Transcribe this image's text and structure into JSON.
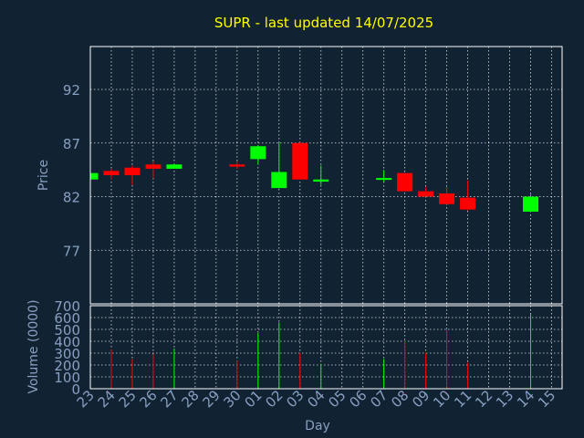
{
  "chart_data": {
    "type": "candlestick",
    "title": "SUPR - last updated 14/07/2025",
    "xlabel": "Day",
    "x_ticks": [
      "23",
      "24",
      "25",
      "26",
      "27",
      "28",
      "29",
      "30",
      "01",
      "02",
      "03",
      "04",
      "05",
      "06",
      "07",
      "08",
      "09",
      "10",
      "11",
      "12",
      "13",
      "14",
      "15"
    ],
    "price_panel": {
      "ylabel": "Price",
      "ylim": [
        72,
        96
      ],
      "y_ticks": [
        77,
        82,
        87,
        92
      ],
      "grid": true,
      "candles": [
        {
          "day": "23",
          "open": 83.6,
          "high": 84.2,
          "low": 83.6,
          "close": 84.2
        },
        {
          "day": "24",
          "open": 84.4,
          "high": 84.6,
          "low": 83.6,
          "close": 84.0
        },
        {
          "day": "25",
          "open": 84.7,
          "high": 84.9,
          "low": 83.1,
          "close": 84.0
        },
        {
          "day": "26",
          "open": 85.0,
          "high": 85.3,
          "low": 83.7,
          "close": 84.6
        },
        {
          "day": "27",
          "open": 84.6,
          "high": 85.1,
          "low": 84.6,
          "close": 85.0
        },
        {
          "day": "30",
          "open": 85.0,
          "high": 85.3,
          "low": 84.6,
          "close": 84.8
        },
        {
          "day": "01",
          "open": 85.5,
          "high": 86.8,
          "low": 85.0,
          "close": 86.7
        },
        {
          "day": "02",
          "open": 82.8,
          "high": 87.1,
          "low": 82.8,
          "close": 84.3
        },
        {
          "day": "03",
          "open": 87.0,
          "high": 87.1,
          "low": 83.7,
          "close": 83.6
        },
        {
          "day": "04",
          "open": 83.4,
          "high": 84.9,
          "low": 83.1,
          "close": 83.6
        },
        {
          "day": "07",
          "open": 83.6,
          "high": 84.5,
          "low": 83.4,
          "close": 83.7
        },
        {
          "day": "08",
          "open": 84.2,
          "high": 84.2,
          "low": 82.5,
          "close": 82.5
        },
        {
          "day": "09",
          "open": 82.5,
          "high": 82.9,
          "low": 82.0,
          "close": 82.0
        },
        {
          "day": "10",
          "open": 82.3,
          "high": 82.9,
          "low": 81.3,
          "close": 81.3
        },
        {
          "day": "11",
          "open": 81.9,
          "high": 83.5,
          "low": 80.7,
          "close": 80.8
        },
        {
          "day": "14",
          "open": 80.6,
          "high": 82.2,
          "low": 80.6,
          "close": 82.0
        }
      ]
    },
    "volume_panel": {
      "ylabel": "Volume (0000)",
      "ylim": [
        0,
        700
      ],
      "y_ticks": [
        0,
        100,
        200,
        300,
        400,
        500,
        600,
        700
      ],
      "grid": true,
      "bars": [
        {
          "day": "24",
          "value": 330,
          "direction": "down"
        },
        {
          "day": "25",
          "value": 250,
          "direction": "down"
        },
        {
          "day": "26",
          "value": 290,
          "direction": "down"
        },
        {
          "day": "27",
          "value": 340,
          "direction": "up"
        },
        {
          "day": "30",
          "value": 240,
          "direction": "down"
        },
        {
          "day": "01",
          "value": 470,
          "direction": "up"
        },
        {
          "day": "02",
          "value": 560,
          "direction": "up"
        },
        {
          "day": "03",
          "value": 300,
          "direction": "down"
        },
        {
          "day": "04",
          "value": 210,
          "direction": "up"
        },
        {
          "day": "07",
          "value": 250,
          "direction": "up"
        },
        {
          "day": "08",
          "value": 400,
          "direction": "down"
        },
        {
          "day": "09",
          "value": 300,
          "direction": "down"
        },
        {
          "day": "10",
          "value": 500,
          "direction": "down"
        },
        {
          "day": "11",
          "value": 220,
          "direction": "down"
        },
        {
          "day": "14",
          "value": 630,
          "direction": "up"
        }
      ]
    },
    "colors": {
      "background": "#112233",
      "up": "#00ff00",
      "down": "#ff0000",
      "text": "#88a0c0",
      "title": "#ffff00",
      "frame": "#ffffff",
      "grid": "#dddddd"
    }
  }
}
